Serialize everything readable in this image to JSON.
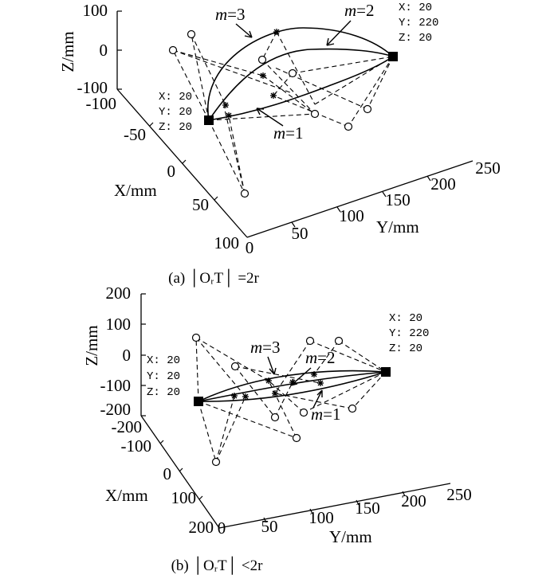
{
  "chart_data": [
    {
      "panel": "a",
      "type": "3d-trajectory",
      "caption": "(a) │OᵣT│ =2r",
      "axes": {
        "x": {
          "label": "X/mm",
          "ticks": [
            "-100",
            "-50",
            "0",
            "50",
            "100"
          ]
        },
        "y": {
          "label": "Y/mm",
          "ticks": [
            "0",
            "50",
            "100",
            "150",
            "200",
            "250"
          ]
        },
        "z": {
          "label": "Z/mm",
          "ticks": [
            "100",
            "0",
            "-100"
          ]
        }
      },
      "start_point": {
        "label_x": "X: 20",
        "label_y": "Y: 20",
        "label_z": "Z: 20"
      },
      "end_point": {
        "label_x": "X: 20",
        "label_y": "Y: 220",
        "label_z": "Z: 20"
      },
      "series": [
        {
          "name": "m=1",
          "label": "m=1"
        },
        {
          "name": "m=2",
          "label": "m=2"
        },
        {
          "name": "m=3",
          "label": "m=3"
        }
      ]
    },
    {
      "panel": "b",
      "type": "3d-trajectory",
      "caption": "(b) │OᵣT│ <2r",
      "axes": {
        "x": {
          "label": "X/mm",
          "ticks": [
            "-200",
            "-100",
            "0",
            "100",
            "200"
          ]
        },
        "y": {
          "label": "Y/mm",
          "ticks": [
            "0",
            "50",
            "100",
            "150",
            "200",
            "250"
          ]
        },
        "z": {
          "label": "Z/mm",
          "ticks": [
            "200",
            "100",
            "0",
            "-100",
            "-200"
          ]
        }
      },
      "start_point": {
        "label_x": "X: 20",
        "label_y": "Y: 20",
        "label_z": "Z: 20"
      },
      "end_point": {
        "label_x": "X: 20",
        "label_y": "Y: 220",
        "label_z": "Z: 20"
      },
      "series": [
        {
          "name": "m=1",
          "label": "m=1"
        },
        {
          "name": "m=2",
          "label": "m=2"
        },
        {
          "name": "m=3",
          "label": "m=3"
        }
      ]
    }
  ]
}
